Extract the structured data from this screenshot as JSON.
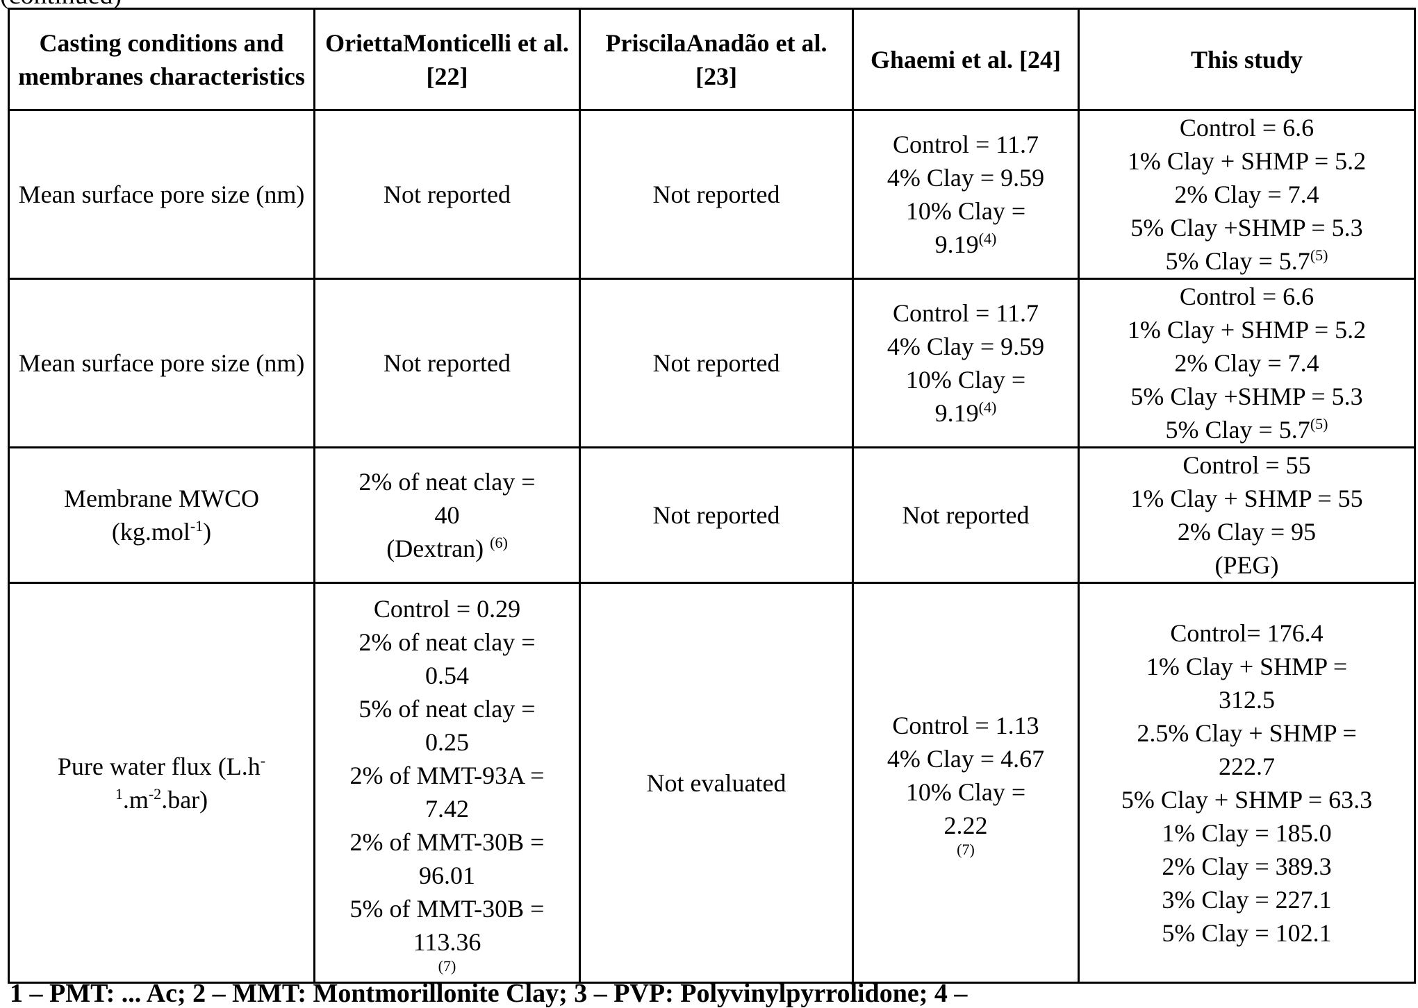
{
  "fragments": {
    "top": "(continued)",
    "bottom": "1 – PMT: ... Ac; 2 – MMT: Montmorillonite Clay; 3 – PVP: Polyvinylpyrrolidone; 4 –"
  },
  "table": {
    "headers": [
      "Casting conditions and membranes characteristics",
      "OriettaMonticelli et al. [22]",
      "PriscilaAnadão et al. [23]",
      "Ghaemi et al. [24]",
      "This study"
    ],
    "rows": [
      {
        "label": "Mean surface pore size (nm)",
        "monticelli": "Not reported",
        "anadao": "Not reported",
        "ghaemi": {
          "lines": [
            "Control = 11.7",
            "4% Clay = 9.59",
            "10% Clay ="
          ],
          "last": "9.19",
          "note": "(4)"
        },
        "this_study": {
          "lines": [
            "Control = 6.6",
            "1% Clay + SHMP = 5.2",
            "2% Clay = 7.4",
            "5% Clay +SHMP = 5.3"
          ],
          "last": "5% Clay = 5.7",
          "note": "(5)"
        }
      },
      {
        "label": "Mean surface pore size (nm)",
        "monticelli": "Not reported",
        "anadao": "Not reported",
        "ghaemi": {
          "lines": [
            "Control = 11.7",
            "4% Clay = 9.59",
            "10% Clay ="
          ],
          "last": "9.19",
          "note": "(4)"
        },
        "this_study": {
          "lines": [
            "Control = 6.6",
            "1% Clay + SHMP = 5.2",
            "2% Clay = 7.4",
            "5% Clay +SHMP = 5.3"
          ],
          "last": "5% Clay = 5.7",
          "note": "(5)"
        }
      },
      {
        "label_main": "Membrane MWCO",
        "label_unit_pre": "(kg.mol",
        "label_unit_sup": "-1",
        "label_unit_post": ")",
        "monticelli": {
          "lines": [
            "2% of neat clay =",
            "40"
          ],
          "last": "(Dextran) ",
          "note": "(6)"
        },
        "anadao": "Not reported",
        "ghaemi": "Not reported",
        "this_study": {
          "lines": [
            "Control = 55",
            "1% Clay + SHMP = 55",
            "2% Clay = 95",
            "(PEG)"
          ]
        }
      },
      {
        "label_pre": "Pure water flux (L.h",
        "label_sup1": "-",
        "label_mid1": "",
        "label_sup2": "1",
        "label_mid2": ".m",
        "label_sup3": "-2",
        "label_post": ".bar)",
        "monticelli": {
          "lines": [
            "Control = 0.29",
            "2% of neat clay =",
            "0.54",
            "5% of neat clay =",
            "0.25",
            "2% of MMT-93A =",
            "7.42",
            "2% of MMT-30B =",
            "96.01",
            "5% of MMT-30B =",
            "113.36"
          ],
          "note": "(7)"
        },
        "anadao": "Not evaluated",
        "ghaemi": {
          "lines": [
            "Control = 1.13",
            "4% Clay = 4.67",
            "10% Clay =",
            "2.22"
          ],
          "note": "(7)"
        },
        "this_study": {
          "lines": [
            "Control= 176.4",
            "1% Clay + SHMP =",
            "312.5",
            "2.5% Clay + SHMP =",
            "222.7",
            "5% Clay + SHMP = 63.3",
            "1% Clay = 185.0",
            "2% Clay = 389.3",
            "3% Clay = 227.1",
            "5% Clay = 102.1"
          ]
        }
      }
    ]
  }
}
